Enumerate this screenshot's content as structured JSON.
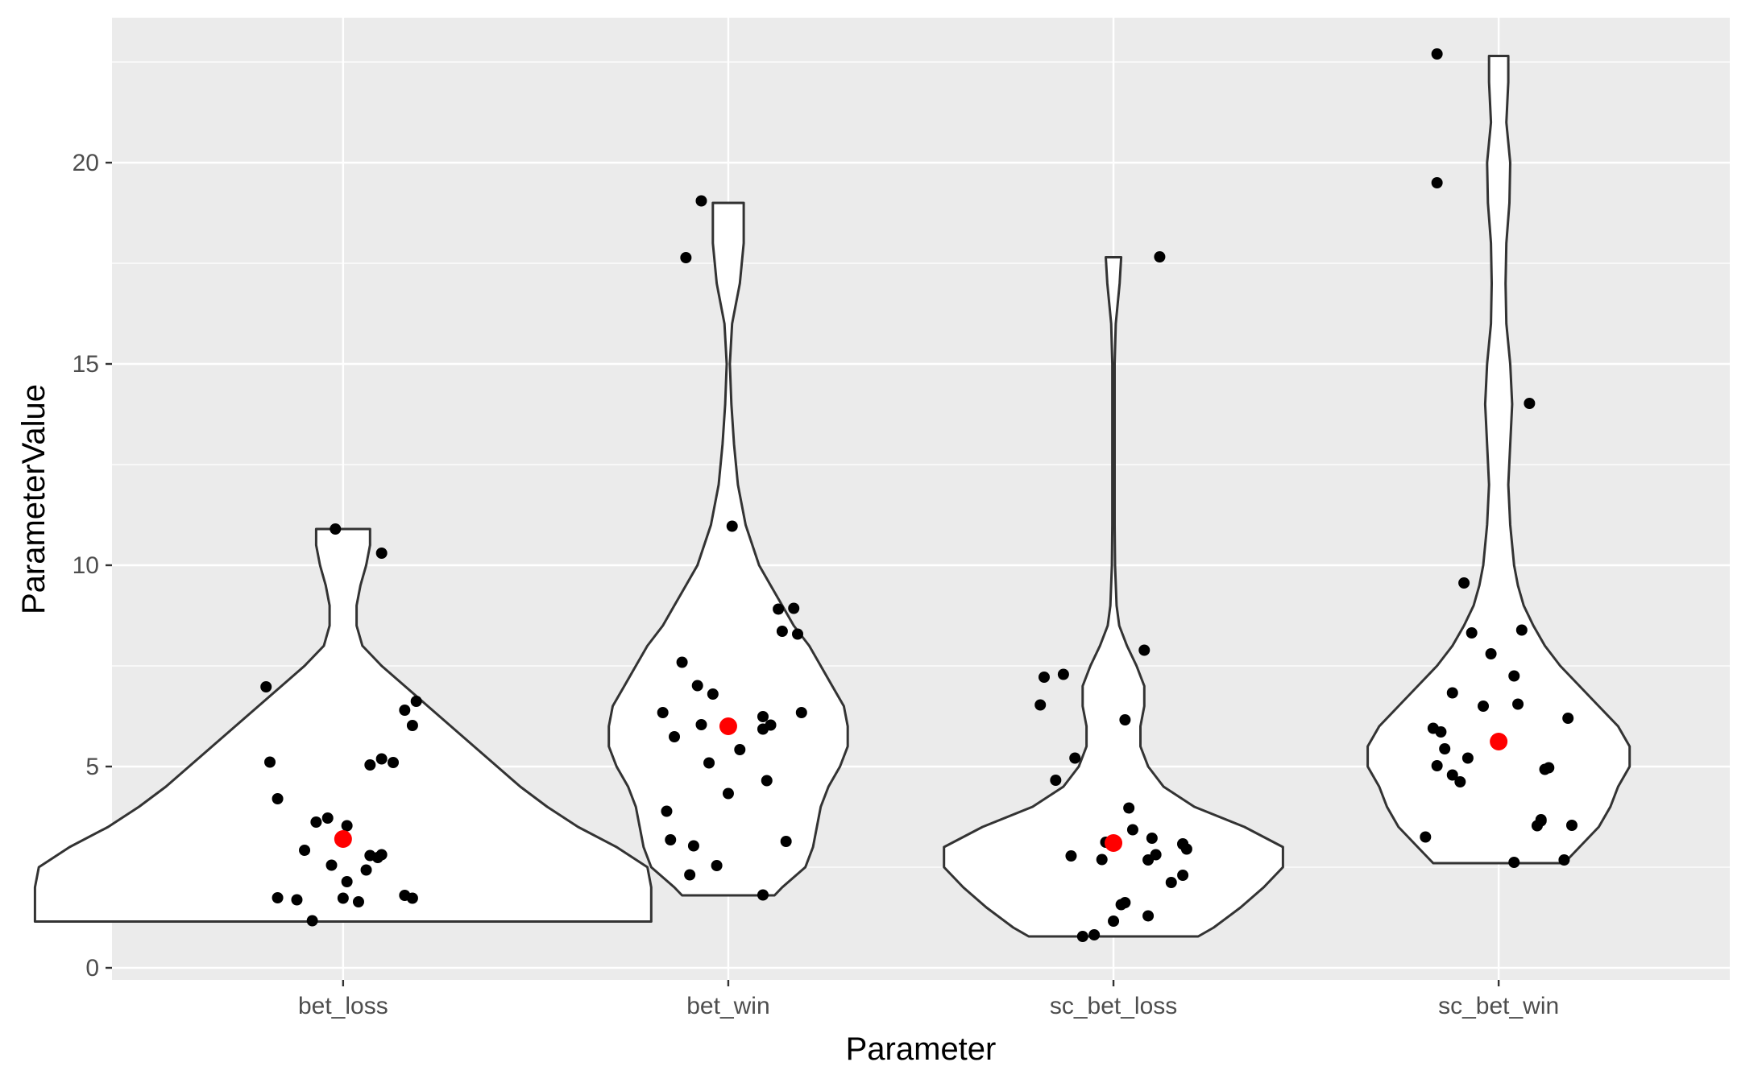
{
  "chart_data": {
    "type": "violin",
    "xlabel": "Parameter",
    "ylabel": "ParameterValue",
    "categories": [
      "bet_loss",
      "bet_win",
      "sc_bet_loss",
      "sc_bet_win"
    ],
    "ylim": [
      -0.3,
      23.6
    ],
    "yticks": [
      0,
      5,
      10,
      15,
      20
    ],
    "ytick_labels": [
      "0",
      "5",
      "10",
      "15",
      "20"
    ],
    "grid": true,
    "legend": "none",
    "colors": {
      "panel": "#ebebeb",
      "grid": "#ffffff",
      "violin_fill": "#ffffff",
      "violin_stroke": "#333333",
      "point": "#000000",
      "mean_point": "#ff0000",
      "tick_text": "#4d4d4d"
    },
    "violins": [
      {
        "category": "bet_loss",
        "mean": 3.2,
        "outline": [
          [
            1.15,
            0.0
          ],
          [
            1.5,
            0.26
          ],
          [
            2.0,
            0.6
          ],
          [
            2.5,
            0.79
          ],
          [
            3.0,
            0.71
          ],
          [
            3.5,
            0.6
          ],
          [
            4.0,
            0.51
          ],
          [
            4.5,
            0.41
          ],
          [
            5.0,
            0.32
          ],
          [
            5.5,
            0.22
          ],
          [
            6.0,
            0.13
          ],
          [
            6.5,
            0.06
          ],
          [
            7.0,
            -0.02
          ],
          [
            7.5,
            -0.1
          ],
          [
            8.0,
            -0.14
          ],
          [
            8.5,
            -0.17
          ],
          [
            9.0,
            -0.17
          ],
          [
            9.5,
            -0.15
          ],
          [
            10.0,
            -0.12
          ],
          [
            10.5,
            -0.07
          ],
          [
            10.9,
            0.0
          ]
        ],
        "outline_width": [
          [
            1.15,
            0.8
          ],
          [
            1.5,
            0.8
          ],
          [
            2.0,
            0.8
          ],
          [
            2.5,
            0.79
          ],
          [
            3.0,
            0.71
          ],
          [
            3.5,
            0.61
          ],
          [
            4.0,
            0.53
          ],
          [
            4.5,
            0.46
          ],
          [
            5.0,
            0.4
          ],
          [
            5.5,
            0.34
          ],
          [
            6.0,
            0.28
          ],
          [
            6.5,
            0.22
          ],
          [
            7.0,
            0.16
          ],
          [
            7.5,
            0.1
          ],
          [
            8.0,
            0.05
          ],
          [
            8.5,
            0.035
          ],
          [
            9.0,
            0.035
          ],
          [
            9.5,
            0.045
          ],
          [
            10.0,
            0.06
          ],
          [
            10.5,
            0.07
          ],
          [
            10.9,
            0.07
          ]
        ],
        "points": [
          [
            -0.2,
            6.98
          ],
          [
            -0.19,
            5.11
          ],
          [
            -0.17,
            4.2
          ],
          [
            -0.17,
            1.74
          ],
          [
            -0.12,
            1.69
          ],
          [
            -0.1,
            2.92
          ],
          [
            -0.07,
            3.62
          ],
          [
            -0.04,
            3.72
          ],
          [
            -0.03,
            2.55
          ],
          [
            -0.08,
            1.17
          ],
          [
            -0.02,
            10.9
          ],
          [
            0.0,
            1.73
          ],
          [
            0.01,
            2.14
          ],
          [
            0.01,
            3.53
          ],
          [
            0.04,
            1.64
          ],
          [
            0.06,
            2.43
          ],
          [
            0.07,
            2.79
          ],
          [
            0.09,
            2.74
          ],
          [
            0.1,
            2.81
          ],
          [
            0.07,
            5.04
          ],
          [
            0.1,
            5.19
          ],
          [
            0.13,
            5.1
          ],
          [
            0.1,
            10.3
          ],
          [
            0.16,
            1.8
          ],
          [
            0.16,
            6.4
          ],
          [
            0.18,
            1.73
          ],
          [
            0.18,
            6.02
          ],
          [
            0.19,
            6.62
          ]
        ]
      },
      {
        "category": "bet_win",
        "mean": 6.0,
        "outline_width": [
          [
            1.8,
            0.12
          ],
          [
            2.0,
            0.14
          ],
          [
            2.5,
            0.2
          ],
          [
            3.0,
            0.22
          ],
          [
            3.5,
            0.23
          ],
          [
            4.0,
            0.24
          ],
          [
            4.5,
            0.26
          ],
          [
            5.0,
            0.29
          ],
          [
            5.5,
            0.31
          ],
          [
            6.0,
            0.31
          ],
          [
            6.5,
            0.3
          ],
          [
            7.0,
            0.27
          ],
          [
            7.5,
            0.24
          ],
          [
            8.0,
            0.21
          ],
          [
            8.5,
            0.17
          ],
          [
            9.0,
            0.14
          ],
          [
            9.5,
            0.11
          ],
          [
            10.0,
            0.08
          ],
          [
            11.0,
            0.045
          ],
          [
            12.0,
            0.025
          ],
          [
            13.0,
            0.015
          ],
          [
            14.0,
            0.008
          ],
          [
            15.0,
            0.004
          ],
          [
            16.0,
            0.01
          ],
          [
            17.0,
            0.03
          ],
          [
            17.5,
            0.035
          ],
          [
            18.0,
            0.04
          ],
          [
            18.5,
            0.04
          ],
          [
            19.0,
            0.04
          ]
        ],
        "points": [
          [
            -0.17,
            6.34
          ],
          [
            -0.16,
            3.89
          ],
          [
            -0.15,
            3.18
          ],
          [
            -0.14,
            5.74
          ],
          [
            -0.12,
            7.59
          ],
          [
            -0.1,
            2.31
          ],
          [
            -0.09,
            3.03
          ],
          [
            -0.08,
            7.01
          ],
          [
            -0.07,
            6.04
          ],
          [
            -0.05,
            5.09
          ],
          [
            -0.04,
            6.8
          ],
          [
            -0.03,
            2.54
          ],
          [
            -0.11,
            17.64
          ],
          [
            -0.07,
            19.05
          ],
          [
            0.0,
            4.33
          ],
          [
            0.01,
            10.97
          ],
          [
            0.03,
            5.42
          ],
          [
            0.09,
            6.24
          ],
          [
            0.09,
            5.93
          ],
          [
            0.11,
            6.03
          ],
          [
            0.1,
            4.65
          ],
          [
            0.13,
            8.91
          ],
          [
            0.14,
            8.36
          ],
          [
            0.15,
            3.14
          ],
          [
            0.17,
            8.93
          ],
          [
            0.18,
            8.29
          ],
          [
            0.19,
            6.34
          ],
          [
            0.09,
            1.81
          ]
        ]
      },
      {
        "category": "sc_bet_loss",
        "mean": 3.1,
        "outline_width": [
          [
            0.78,
            0.22
          ],
          [
            1.0,
            0.26
          ],
          [
            1.5,
            0.33
          ],
          [
            2.0,
            0.39
          ],
          [
            2.5,
            0.44
          ],
          [
            3.0,
            0.44
          ],
          [
            3.5,
            0.34
          ],
          [
            4.0,
            0.21
          ],
          [
            4.5,
            0.13
          ],
          [
            5.0,
            0.09
          ],
          [
            5.5,
            0.07
          ],
          [
            6.0,
            0.07
          ],
          [
            6.5,
            0.08
          ],
          [
            7.0,
            0.08
          ],
          [
            7.5,
            0.06
          ],
          [
            8.0,
            0.035
          ],
          [
            8.5,
            0.015
          ],
          [
            9.0,
            0.008
          ],
          [
            10.0,
            0.004
          ],
          [
            11.0,
            0.003
          ],
          [
            13.0,
            0.003
          ],
          [
            15.0,
            0.003
          ],
          [
            16.0,
            0.006
          ],
          [
            17.0,
            0.016
          ],
          [
            17.65,
            0.02
          ]
        ],
        "points": [
          [
            -0.19,
            6.53
          ],
          [
            -0.18,
            7.22
          ],
          [
            -0.15,
            4.66
          ],
          [
            -0.13,
            7.29
          ],
          [
            -0.11,
            2.78
          ],
          [
            -0.1,
            5.21
          ],
          [
            -0.08,
            0.78
          ],
          [
            -0.05,
            0.82
          ],
          [
            -0.03,
            2.69
          ],
          [
            -0.02,
            3.12
          ],
          [
            0.0,
            1.16
          ],
          [
            0.02,
            1.57
          ],
          [
            0.03,
            1.62
          ],
          [
            0.03,
            6.16
          ],
          [
            0.04,
            3.97
          ],
          [
            0.05,
            3.43
          ],
          [
            0.09,
            1.29
          ],
          [
            0.09,
            2.68
          ],
          [
            0.1,
            3.22
          ],
          [
            0.11,
            2.81
          ],
          [
            0.08,
            7.89
          ],
          [
            0.12,
            17.66
          ],
          [
            0.15,
            2.12
          ],
          [
            0.18,
            2.3
          ],
          [
            0.18,
            3.08
          ],
          [
            0.18,
            3.07
          ],
          [
            0.19,
            2.95
          ]
        ]
      },
      {
        "category": "sc_bet_win",
        "mean": 5.62,
        "outline_width": [
          [
            2.6,
            0.17
          ],
          [
            3.0,
            0.21
          ],
          [
            3.5,
            0.26
          ],
          [
            4.0,
            0.29
          ],
          [
            4.5,
            0.31
          ],
          [
            5.0,
            0.34
          ],
          [
            5.5,
            0.34
          ],
          [
            6.0,
            0.31
          ],
          [
            6.5,
            0.26
          ],
          [
            7.0,
            0.21
          ],
          [
            7.5,
            0.16
          ],
          [
            8.0,
            0.12
          ],
          [
            8.5,
            0.09
          ],
          [
            9.0,
            0.065
          ],
          [
            9.5,
            0.05
          ],
          [
            10.0,
            0.04
          ],
          [
            11.0,
            0.03
          ],
          [
            12.0,
            0.025
          ],
          [
            13.0,
            0.03
          ],
          [
            14.0,
            0.035
          ],
          [
            15.0,
            0.03
          ],
          [
            16.0,
            0.02
          ],
          [
            17.0,
            0.018
          ],
          [
            18.0,
            0.02
          ],
          [
            19.0,
            0.028
          ],
          [
            20.0,
            0.03
          ],
          [
            21.0,
            0.02
          ],
          [
            22.0,
            0.025
          ],
          [
            22.65,
            0.025
          ]
        ],
        "points": [
          [
            -0.19,
            3.25
          ],
          [
            -0.17,
            5.95
          ],
          [
            -0.16,
            5.02
          ],
          [
            -0.15,
            5.86
          ],
          [
            -0.14,
            5.44
          ],
          [
            -0.12,
            4.79
          ],
          [
            -0.1,
            4.62
          ],
          [
            -0.08,
            5.21
          ],
          [
            -0.12,
            6.83
          ],
          [
            -0.09,
            9.56
          ],
          [
            -0.07,
            8.32
          ],
          [
            -0.04,
            6.5
          ],
          [
            -0.02,
            7.8
          ],
          [
            -0.16,
            19.5
          ],
          [
            -0.16,
            22.7
          ],
          [
            0.04,
            2.62
          ],
          [
            0.04,
            7.25
          ],
          [
            0.05,
            6.55
          ],
          [
            0.06,
            8.39
          ],
          [
            0.08,
            14.02
          ],
          [
            0.1,
            3.53
          ],
          [
            0.11,
            3.65
          ],
          [
            0.11,
            3.68
          ],
          [
            0.12,
            4.93
          ],
          [
            0.13,
            4.97
          ],
          [
            0.17,
            2.68
          ],
          [
            0.18,
            6.2
          ],
          [
            0.19,
            3.54
          ]
        ]
      }
    ]
  }
}
